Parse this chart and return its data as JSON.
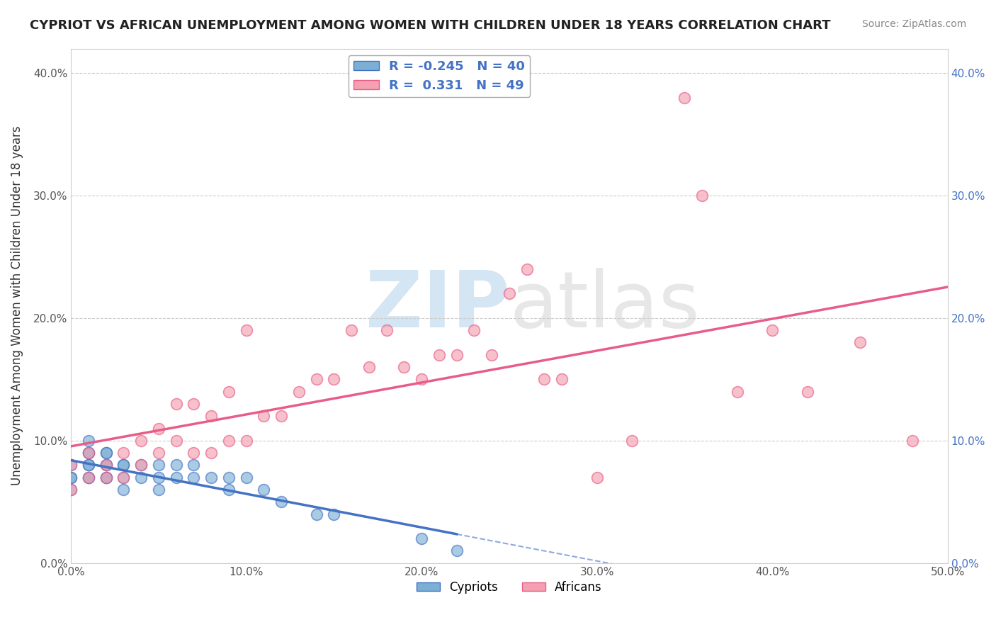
{
  "title": "CYPRIOT VS AFRICAN UNEMPLOYMENT AMONG WOMEN WITH CHILDREN UNDER 18 YEARS CORRELATION CHART",
  "source": "Source: ZipAtlas.com",
  "ylabel": "Unemployment Among Women with Children Under 18 years",
  "xlim": [
    0.0,
    0.5
  ],
  "ylim": [
    0.0,
    0.42
  ],
  "xticks": [
    0.0,
    0.1,
    0.2,
    0.3,
    0.4,
    0.5
  ],
  "yticks": [
    0.0,
    0.1,
    0.2,
    0.3,
    0.4
  ],
  "xticklabels": [
    "0.0%",
    "10.0%",
    "20.0%",
    "30.0%",
    "40.0%",
    "50.0%"
  ],
  "yticklabels": [
    "0.0%",
    "10.0%",
    "20.0%",
    "30.0%",
    "40.0%"
  ],
  "cypriot_color": "#7bafd4",
  "african_color": "#f4a0b0",
  "cypriot_R": -0.245,
  "cypriot_N": 40,
  "african_R": 0.331,
  "african_N": 49,
  "cypriot_line_color": "#4472c4",
  "african_line_color": "#e85c8a",
  "background_color": "#ffffff",
  "grid_color": "#cccccc",
  "watermark_zip": "ZIP",
  "watermark_atlas": "atlas",
  "cypriot_x": [
    0.0,
    0.0,
    0.0,
    0.0,
    0.01,
    0.01,
    0.01,
    0.01,
    0.01,
    0.01,
    0.01,
    0.02,
    0.02,
    0.02,
    0.02,
    0.02,
    0.02,
    0.03,
    0.03,
    0.03,
    0.03,
    0.04,
    0.04,
    0.05,
    0.05,
    0.05,
    0.06,
    0.06,
    0.07,
    0.07,
    0.08,
    0.09,
    0.09,
    0.1,
    0.11,
    0.12,
    0.14,
    0.15,
    0.2,
    0.22
  ],
  "cypriot_y": [
    0.06,
    0.07,
    0.07,
    0.08,
    0.07,
    0.07,
    0.08,
    0.08,
    0.09,
    0.09,
    0.1,
    0.07,
    0.07,
    0.08,
    0.08,
    0.09,
    0.09,
    0.06,
    0.07,
    0.08,
    0.08,
    0.07,
    0.08,
    0.06,
    0.07,
    0.08,
    0.07,
    0.08,
    0.07,
    0.08,
    0.07,
    0.06,
    0.07,
    0.07,
    0.06,
    0.05,
    0.04,
    0.04,
    0.02,
    0.01
  ],
  "african_x": [
    0.0,
    0.0,
    0.01,
    0.01,
    0.02,
    0.02,
    0.03,
    0.03,
    0.04,
    0.04,
    0.05,
    0.05,
    0.06,
    0.06,
    0.07,
    0.07,
    0.08,
    0.08,
    0.09,
    0.09,
    0.1,
    0.1,
    0.11,
    0.12,
    0.13,
    0.14,
    0.15,
    0.16,
    0.17,
    0.18,
    0.19,
    0.2,
    0.21,
    0.22,
    0.23,
    0.24,
    0.25,
    0.26,
    0.27,
    0.28,
    0.3,
    0.32,
    0.35,
    0.36,
    0.38,
    0.4,
    0.42,
    0.45,
    0.48
  ],
  "african_y": [
    0.06,
    0.08,
    0.07,
    0.09,
    0.07,
    0.08,
    0.07,
    0.09,
    0.08,
    0.1,
    0.09,
    0.11,
    0.1,
    0.13,
    0.09,
    0.13,
    0.09,
    0.12,
    0.1,
    0.14,
    0.1,
    0.19,
    0.12,
    0.12,
    0.14,
    0.15,
    0.15,
    0.19,
    0.16,
    0.19,
    0.16,
    0.15,
    0.17,
    0.17,
    0.19,
    0.17,
    0.22,
    0.24,
    0.15,
    0.15,
    0.07,
    0.1,
    0.38,
    0.3,
    0.14,
    0.19,
    0.14,
    0.18,
    0.1
  ]
}
